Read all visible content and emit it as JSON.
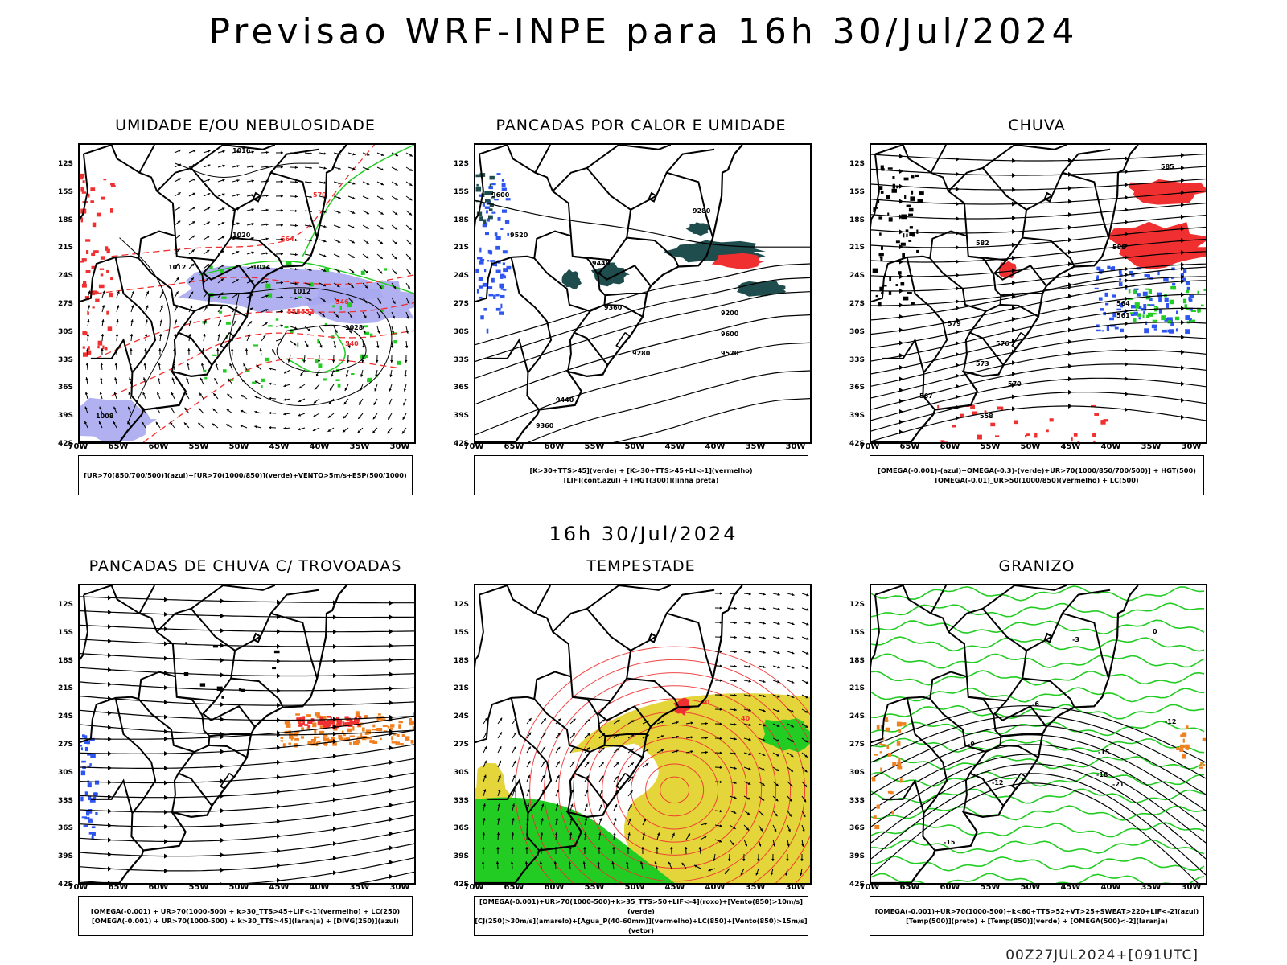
{
  "title": "Previsao WRF-INPE  para 16h 30/Jul/2024",
  "mid_time": "16h 30/Jul/2024",
  "footer": "00Z27JUL2024+[091UTC]",
  "lat_labels": [
    "12S",
    "15S",
    "18S",
    "21S",
    "24S",
    "27S",
    "30S",
    "33S",
    "36S",
    "39S",
    "42S"
  ],
  "lon_labels": [
    "70W",
    "65W",
    "60W",
    "55W",
    "50W",
    "45W",
    "40W",
    "35W",
    "30W"
  ],
  "colors": {
    "blue": "#2e55f0",
    "green": "#22cc22",
    "red": "#f03030",
    "orange": "#f08020",
    "yellow": "#e3d53a",
    "lavender": "#a8a8f0",
    "teal": "#1f4c4c"
  },
  "panels": [
    {
      "title": "UMIDADE E/OU NEBULOSIDADE",
      "legend": [
        "[UR>70(850/700/500)](azul)+[UR>70(1000/850)](verde)+VENTO>5m/s+ESP(500/1000)"
      ],
      "labels": [
        "1012",
        "1016",
        "1020",
        "1024",
        "1028",
        "1012",
        "1008",
        "570",
        "564",
        "558",
        "552",
        "546",
        "540"
      ]
    },
    {
      "title": "PANCADAS POR CALOR E UMIDADE",
      "legend": [
        "[K>30+TTS>45](verde) + [K>30+TTS>45+LI<-1](vermelho)",
        "[LIF](cont.azul) + [HGT(300)](linha preta)"
      ],
      "labels": [
        "9600",
        "9520",
        "9440",
        "9360",
        "9280",
        "9200",
        "9600",
        "9520",
        "9440",
        "9360",
        "9280"
      ]
    },
    {
      "title": "CHUVA",
      "legend": [
        "[OMEGA(-0.001)-(azul)+OMEGA(-0.3)-(verde)+UR>70(1000/850/700/500)] + HGT(500)",
        "[OMEGA(-0.01)_UR>50(1000/850)(vermelho) + LC(500)"
      ],
      "labels": [
        "582",
        "579",
        "576",
        "573",
        "570",
        "567",
        "564",
        "561",
        "558",
        "585",
        "588"
      ]
    },
    {
      "title": "PANCADAS DE CHUVA C/ TROVOADAS",
      "legend": [
        "[OMEGA(-0.001) + UR>70(1000-500) + k>30_TTS>45+LIF<-1](vermelho) + LC(250)",
        "[OMEGA(-0.001) + UR>70(1000-500) + k>30_TTS>45](laranja) + [DIVG(250)](azul)"
      ],
      "labels": []
    },
    {
      "title": "TEMPESTADE",
      "legend": [
        "[OMEGA(-0.001)+UR>70(1000-500)+k>35_TTS>50+LIF<-4](roxo)+[Vento(850)>10m/s](verde)",
        "[CJ(250)>30m/s](amarelo)+[Agua_P(40-60mm)](vermelho)+LC(850)+[Vento(850)>15m/s](vetor)"
      ],
      "labels": [
        "40",
        "40"
      ]
    },
    {
      "title": "GRANIZO",
      "legend": [
        "[OMEGA(-0.001)+UR>70(1000-500)+k<60+TTS>52+VT>25+SWEAT>220+LIF<-2](azul)",
        "[Temp(500)](preto) + [Temp(850)](verde) + [OMEGA(500)<-2](laranja)"
      ],
      "labels": [
        "-15",
        "-18",
        "-21",
        "-12",
        "-9",
        "-6",
        "-3",
        "0",
        "-15",
        "-12"
      ]
    }
  ]
}
